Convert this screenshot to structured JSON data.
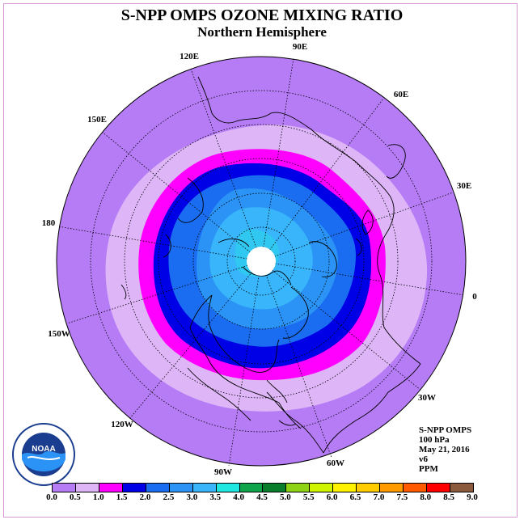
{
  "title": "S-NPP OMPS OZONE MIXING RATIO",
  "subtitle": "Northern Hemisphere",
  "longitude_labels": [
    "90E",
    "60E",
    "30E",
    "0",
    "30W",
    "60W",
    "90W",
    "120W",
    "150W",
    "180",
    "150E",
    "120E"
  ],
  "info": {
    "instrument": "S-NPP OMPS",
    "level": "100 hPa",
    "date": "May 21, 2016",
    "version": "v6",
    "units": "PPM"
  },
  "colorbar": {
    "colors": [
      "#b57cf5",
      "#deb6f7",
      "#ff00ff",
      "#0000e6",
      "#1a6cf0",
      "#2a93f5",
      "#39b5fb",
      "#1fe8e0",
      "#0ea54a",
      "#0a7d2c",
      "#8fd414",
      "#cff500",
      "#fff200",
      "#ffcc00",
      "#ff9a00",
      "#ff5a00",
      "#ff0000",
      "#8b5a3c"
    ],
    "ticks": [
      "0.0",
      "0.5",
      "1.0",
      "1.5",
      "2.0",
      "2.5",
      "3.0",
      "3.5",
      "4.0",
      "4.5",
      "5.0",
      "5.5",
      "6.0",
      "6.5",
      "7.0",
      "7.5",
      "8.0",
      "8.5",
      "9.0"
    ]
  },
  "logo": {
    "name": "NOAA"
  }
}
